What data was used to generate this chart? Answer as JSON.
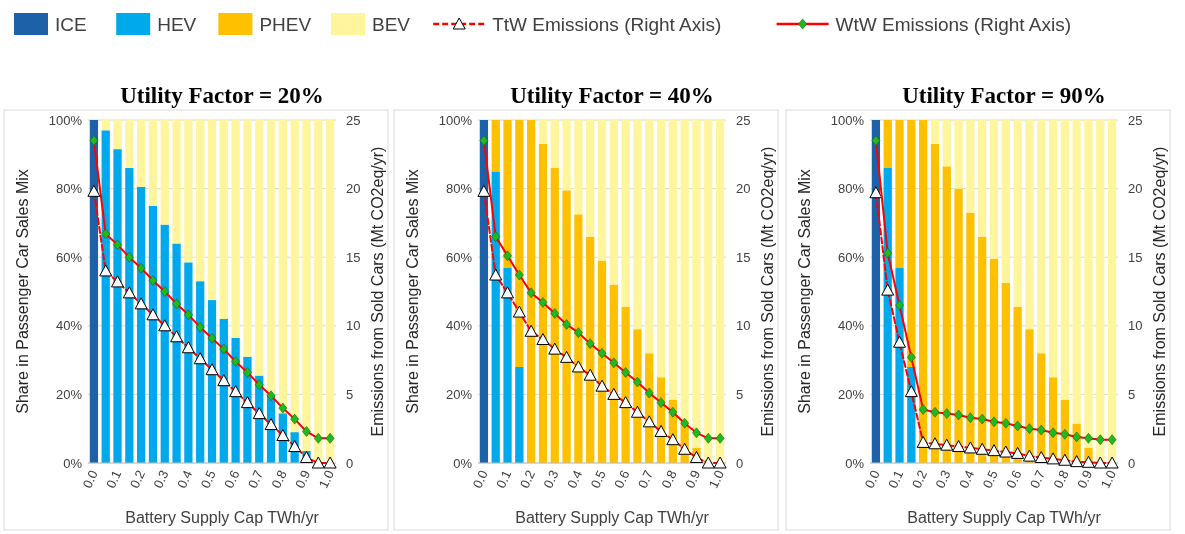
{
  "chart_data": [
    {
      "type": "bar",
      "stacked": true,
      "title": "Utility Factor = 20%",
      "xlabel": "Battery Supply Cap TWh/yr",
      "ylabel": "Share in Passenger Car Sales Mix",
      "y2label": "Emissions from Sold Cars (Mt CO2eq/yr)",
      "categories": [
        "0.0",
        null,
        "0.1",
        null,
        "0.2",
        null,
        "0.3",
        null,
        "0.4",
        null,
        "0.5",
        null,
        "0.6",
        null,
        "0.7",
        null,
        "0.8",
        null,
        "0.9",
        null,
        "1.0"
      ],
      "ylim": [
        0,
        100
      ],
      "yticks": [
        {
          "value": 0,
          "label": "0%"
        },
        {
          "value": 20,
          "label": "20%"
        },
        {
          "value": 40,
          "label": "40%"
        },
        {
          "value": 60,
          "label": "60%"
        },
        {
          "value": 80,
          "label": "80%"
        },
        {
          "value": 100,
          "label": "100%"
        }
      ],
      "y2lim": [
        0,
        25
      ],
      "y2ticks": [
        0,
        5,
        10,
        15,
        20,
        25
      ],
      "grid": "y",
      "legend": "top",
      "series": [
        {
          "name": "ICE",
          "color": "#1d62a8",
          "values": [
            100,
            0,
            0,
            0,
            0,
            0,
            0,
            0,
            0,
            0,
            0,
            0,
            0,
            0,
            0,
            0,
            0,
            0,
            0,
            0,
            0
          ]
        },
        {
          "name": "HEV",
          "color": "#00a8ec",
          "values": [
            0,
            97,
            91.5,
            86,
            80.5,
            75,
            69.5,
            64,
            58.5,
            53,
            47.5,
            42,
            36.5,
            31,
            25.5,
            20,
            14.5,
            9,
            3.5,
            0,
            0
          ]
        },
        {
          "name": "PHEV",
          "color": "#ffc000",
          "values": [
            0,
            0,
            0,
            0,
            0,
            0,
            0,
            0,
            0,
            0,
            0,
            0,
            0,
            0,
            0,
            0,
            0,
            0,
            0,
            0,
            0
          ]
        },
        {
          "name": "BEV",
          "color": "#fff59c",
          "values": [
            0,
            3,
            8.5,
            14,
            19.5,
            25,
            30.5,
            36,
            41.5,
            47,
            52.5,
            58,
            63.5,
            69,
            74.5,
            80,
            85.5,
            91,
            96.5,
            100,
            100
          ]
        },
        {
          "name": "TtW Emissions (Right Axis)",
          "type": "line",
          "axis": "y2",
          "color": "#ff0000",
          "line_style": "dashed",
          "marker": "triangle",
          "values": [
            19.8,
            14.0,
            13.2,
            12.4,
            11.6,
            10.8,
            10.0,
            9.2,
            8.4,
            7.6,
            6.8,
            6.0,
            5.2,
            4.4,
            3.6,
            2.8,
            2.0,
            1.2,
            0.4,
            0,
            0
          ]
        },
        {
          "name": "WtW Emissions (Right Axis)",
          "type": "line",
          "axis": "y2",
          "color": "#ff0000",
          "line_style": "solid",
          "marker": "diamond",
          "values": [
            23.5,
            16.7,
            15.9,
            15.0,
            14.2,
            13.3,
            12.5,
            11.6,
            10.8,
            9.9,
            9.1,
            8.3,
            7.4,
            6.6,
            5.7,
            4.9,
            4.0,
            3.2,
            2.3,
            1.8,
            1.8
          ]
        }
      ]
    },
    {
      "type": "bar",
      "stacked": true,
      "title": "Utility Factor = 40%",
      "xlabel": "Battery Supply Cap TWh/yr",
      "ylabel": "Share in Passenger Car Sales Mix",
      "y2label": "Emissions from Sold Cars (Mt CO2eq/yr)",
      "categories": [
        "0.0",
        null,
        "0.1",
        null,
        "0.2",
        null,
        "0.3",
        null,
        "0.4",
        null,
        "0.5",
        null,
        "0.6",
        null,
        "0.7",
        null,
        "0.8",
        null,
        "0.9",
        null,
        "1.0"
      ],
      "ylim": [
        0,
        100
      ],
      "yticks": [
        {
          "value": 0,
          "label": "0%"
        },
        {
          "value": 20,
          "label": "20%"
        },
        {
          "value": 40,
          "label": "40%"
        },
        {
          "value": 60,
          "label": "60%"
        },
        {
          "value": 80,
          "label": "80%"
        },
        {
          "value": 100,
          "label": "100%"
        }
      ],
      "y2lim": [
        0,
        25
      ],
      "y2ticks": [
        0,
        5,
        10,
        15,
        20,
        25
      ],
      "grid": "y",
      "series": [
        {
          "color": "#1d62a8",
          "values": [
            100,
            0,
            0,
            0,
            0,
            0,
            0,
            0,
            0,
            0,
            0,
            0,
            0,
            0,
            0,
            0,
            0,
            0,
            0,
            0,
            0
          ]
        },
        {
          "color": "#00a8ec",
          "values": [
            0,
            85,
            57,
            28,
            0,
            0,
            0,
            0,
            0,
            0,
            0,
            0,
            0,
            0,
            0,
            0,
            0,
            0,
            0,
            0,
            0
          ]
        },
        {
          "color": "#ffc000",
          "values": [
            0,
            15,
            43,
            72,
            100,
            93,
            86,
            79.5,
            72.5,
            66,
            59,
            52,
            45.5,
            39,
            32,
            25,
            18.5,
            11.5,
            4.5,
            0,
            0
          ]
        },
        {
          "color": "#fff59c",
          "values": [
            0,
            0,
            0,
            0,
            0,
            7,
            14,
            20.5,
            27.5,
            34,
            41,
            48,
            54.5,
            61,
            68,
            75,
            81.5,
            88.5,
            95.5,
            100,
            100
          ]
        },
        {
          "type": "line",
          "axis": "y2",
          "color": "#ff0000",
          "line_style": "dashed",
          "marker": "triangle",
          "values": [
            19.8,
            13.7,
            12.4,
            11.0,
            9.6,
            9.0,
            8.3,
            7.7,
            7.0,
            6.4,
            5.6,
            5.0,
            4.4,
            3.7,
            3.0,
            2.3,
            1.7,
            1.0,
            0.4,
            0,
            0
          ]
        },
        {
          "type": "line",
          "axis": "y2",
          "color": "#ff0000",
          "line_style": "solid",
          "marker": "diamond",
          "values": [
            23.5,
            16.5,
            15.1,
            13.7,
            12.4,
            11.7,
            10.9,
            10.1,
            9.5,
            8.7,
            8.0,
            7.3,
            6.6,
            5.9,
            5.1,
            4.4,
            3.7,
            2.9,
            2.2,
            1.8,
            1.8
          ]
        }
      ]
    },
    {
      "type": "bar",
      "stacked": true,
      "title": "Utility Factor = 90%",
      "xlabel": "Battery Supply Cap TWh/yr",
      "ylabel": "Share in Passenger Car Sales Mix",
      "y2label": "Emissions from Sold Cars (Mt CO2eq/yr)",
      "categories": [
        "0.0",
        null,
        "0.1",
        null,
        "0.2",
        null,
        "0.3",
        null,
        "0.4",
        null,
        "0.5",
        null,
        "0.6",
        null,
        "0.7",
        null,
        "0.8",
        null,
        "0.9",
        null,
        "1.0"
      ],
      "ylim": [
        0,
        100
      ],
      "yticks": [
        {
          "value": 0,
          "label": "0%"
        },
        {
          "value": 20,
          "label": "20%"
        },
        {
          "value": 40,
          "label": "40%"
        },
        {
          "value": 60,
          "label": "60%"
        },
        {
          "value": 80,
          "label": "80%"
        },
        {
          "value": 100,
          "label": "100%"
        }
      ],
      "y2lim": [
        0,
        25
      ],
      "y2ticks": [
        0,
        5,
        10,
        15,
        20,
        25
      ],
      "grid": "y",
      "series": [
        {
          "color": "#1d62a8",
          "values": [
            100,
            0,
            0,
            0,
            0,
            0,
            0,
            0,
            0,
            0,
            0,
            0,
            0,
            0,
            0,
            0,
            0,
            0,
            0,
            0,
            0
          ]
        },
        {
          "color": "#00a8ec",
          "values": [
            0,
            86,
            57,
            28,
            0,
            0,
            0,
            0,
            0,
            0,
            0,
            0,
            0,
            0,
            0,
            0,
            0,
            0,
            0,
            0,
            0
          ]
        },
        {
          "color": "#ffc000",
          "values": [
            0,
            14,
            43,
            72,
            100,
            93,
            86.5,
            80,
            73,
            66,
            59.5,
            52.5,
            45.5,
            39,
            32,
            25,
            18.5,
            11.5,
            4.5,
            0,
            0
          ]
        },
        {
          "color": "#fff59c",
          "values": [
            0,
            0,
            0,
            0,
            0,
            7,
            13.5,
            20,
            27,
            34,
            40.5,
            47.5,
            54.5,
            61,
            68,
            75,
            81.5,
            88.5,
            95.5,
            100,
            100
          ]
        },
        {
          "type": "line",
          "axis": "y2",
          "color": "#ff0000",
          "line_style": "dashed",
          "marker": "triangle",
          "values": [
            19.7,
            12.6,
            8.8,
            5.2,
            1.5,
            1.4,
            1.3,
            1.2,
            1.1,
            1.0,
            0.9,
            0.8,
            0.7,
            0.5,
            0.4,
            0.3,
            0.2,
            0.1,
            0.05,
            0,
            0
          ]
        },
        {
          "type": "line",
          "axis": "y2",
          "color": "#ff0000",
          "line_style": "solid",
          "marker": "diamond",
          "values": [
            23.5,
            15.3,
            11.5,
            7.7,
            3.9,
            3.7,
            3.6,
            3.5,
            3.3,
            3.2,
            3.0,
            2.9,
            2.7,
            2.5,
            2.4,
            2.2,
            2.1,
            1.9,
            1.8,
            1.7,
            1.7
          ]
        }
      ]
    }
  ]
}
